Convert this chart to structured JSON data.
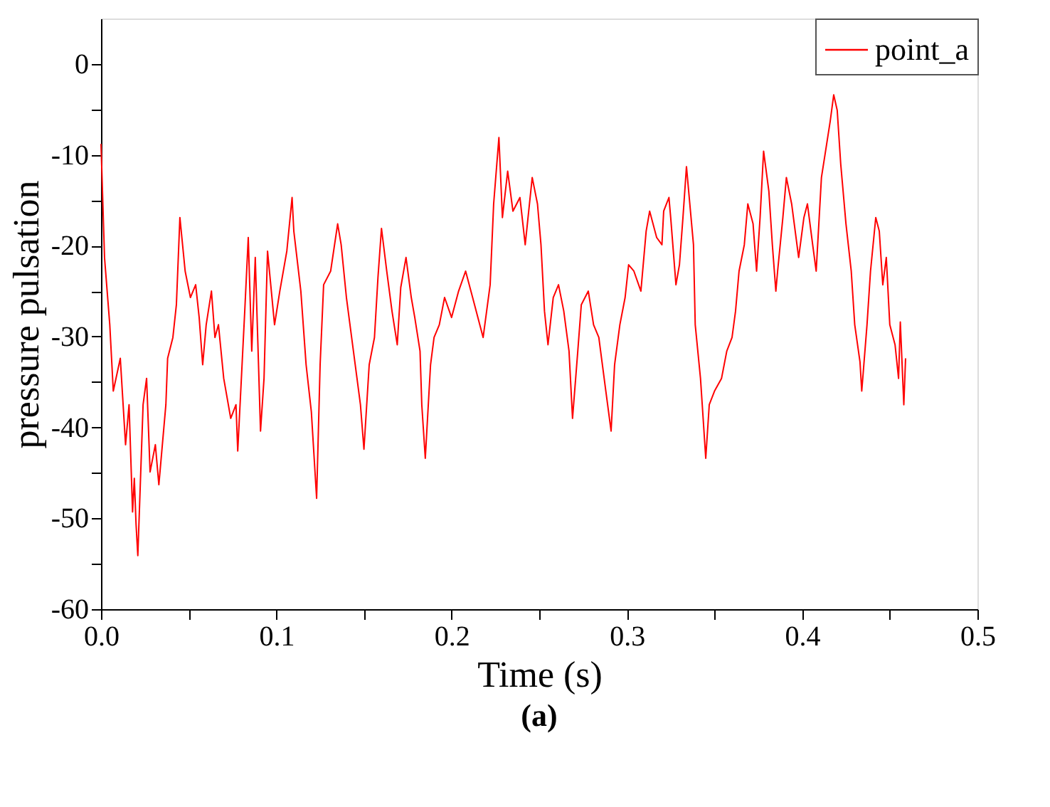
{
  "chart_data": {
    "type": "line",
    "xlabel": "Time (s)",
    "ylabel": "pressure pulsation",
    "annotations": [
      "(a)"
    ],
    "xlim": [
      0,
      0.5
    ],
    "xticks": [
      {
        "value": 0,
        "label": "0.0"
      },
      {
        "value": 0.05,
        "label": null
      },
      {
        "value": 0.1,
        "label": "0.1"
      },
      {
        "value": 0.15,
        "label": null
      },
      {
        "value": 0.2,
        "label": "0.2"
      },
      {
        "value": 0.25,
        "label": null
      },
      {
        "value": 0.3,
        "label": "0.3"
      },
      {
        "value": 0.35,
        "label": null
      },
      {
        "value": 0.4,
        "label": "0.4"
      },
      {
        "value": 0.45,
        "label": null
      },
      {
        "value": 0.5,
        "label": "0.5"
      }
    ],
    "ylim": [
      -60,
      5
    ],
    "yticks": [
      -60,
      {
        "value": -55,
        "label": null
      },
      -50,
      {
        "value": -45,
        "label": null
      },
      -40,
      {
        "value": -35,
        "label": null
      },
      -30,
      {
        "value": -25,
        "label": null
      },
      -20,
      {
        "value": -15,
        "label": null
      },
      -10,
      {
        "value": -5,
        "label": null
      },
      0
    ],
    "grid": false,
    "legend": "top right",
    "line_style": "solid",
    "marker": "none",
    "series": [
      {
        "name": "point_a",
        "color": "#ff0000",
        "x": [
          0,
          0.002,
          0.005,
          0.007,
          0.011,
          0.014,
          0.016,
          0.018,
          0.019,
          0.02,
          0.021,
          0.024,
          0.026,
          0.028,
          0.031,
          0.033,
          0.037,
          0.038,
          0.041,
          0.043,
          0.045,
          0.048,
          0.051,
          0.054,
          0.056,
          0.058,
          0.06,
          0.063,
          0.065,
          0.067,
          0.07,
          0.074,
          0.077,
          0.078,
          0.082,
          0.084,
          0.086,
          0.088,
          0.091,
          0.093,
          0.095,
          0.099,
          0.102,
          0.106,
          0.109,
          0.11,
          0.114,
          0.117,
          0.12,
          0.123,
          0.125,
          0.127,
          0.131,
          0.135,
          0.137,
          0.14,
          0.144,
          0.148,
          0.15,
          0.153,
          0.156,
          0.158,
          0.16,
          0.163,
          0.166,
          0.169,
          0.171,
          0.174,
          0.177,
          0.179,
          0.182,
          0.183,
          0.185,
          0.188,
          0.19,
          0.193,
          0.196,
          0.2,
          0.204,
          0.208,
          0.212,
          0.218,
          0.222,
          0.224,
          0.227,
          0.229,
          0.232,
          0.235,
          0.239,
          0.242,
          0.244,
          0.246,
          0.249,
          0.251,
          0.253,
          0.255,
          0.258,
          0.261,
          0.264,
          0.267,
          0.269,
          0.272,
          0.274,
          0.278,
          0.281,
          0.284,
          0.288,
          0.291,
          0.293,
          0.296,
          0.299,
          0.301,
          0.304,
          0.308,
          0.311,
          0.313,
          0.317,
          0.32,
          0.321,
          0.324,
          0.325,
          0.328,
          0.33,
          0.332,
          0.334,
          0.338,
          0.339,
          0.342,
          0.343,
          0.345,
          0.347,
          0.35,
          0.354,
          0.357,
          0.36,
          0.362,
          0.364,
          0.367,
          0.369,
          0.372,
          0.374,
          0.376,
          0.378,
          0.381,
          0.383,
          0.385,
          0.386,
          0.389,
          0.391,
          0.394,
          0.398,
          0.401,
          0.403,
          0.406,
          0.408,
          0.411,
          0.414,
          0.416,
          0.418,
          0.42,
          0.422,
          0.425,
          0.428,
          0.43,
          0.433,
          0.434,
          0.437,
          0.439,
          0.442,
          0.444,
          0.446,
          0.448,
          0.45,
          0.453,
          0.455,
          0.456,
          0.458,
          0.459
        ],
        "values": [
          -8.8,
          -21.3,
          -28.7,
          -36.0,
          -32.4,
          -41.9,
          -37.5,
          -49.3,
          -45.6,
          -50.7,
          -54.1,
          -37.5,
          -34.6,
          -44.9,
          -41.9,
          -46.3,
          -37.5,
          -32.4,
          -30.1,
          -26.5,
          -16.9,
          -22.8,
          -25.7,
          -24.3,
          -27.9,
          -33.1,
          -28.7,
          -25.0,
          -30.1,
          -28.7,
          -34.6,
          -39.0,
          -37.5,
          -42.6,
          -27.2,
          -19.1,
          -31.6,
          -21.3,
          -40.4,
          -34.6,
          -20.6,
          -28.7,
          -25.0,
          -20.6,
          -14.7,
          -18.4,
          -25.0,
          -33.1,
          -38.3,
          -47.8,
          -33.1,
          -24.3,
          -22.8,
          -17.6,
          -19.9,
          -25.7,
          -31.6,
          -37.5,
          -42.4,
          -33.1,
          -30.1,
          -23.5,
          -18.1,
          -22.8,
          -27.2,
          -30.9,
          -24.6,
          -21.3,
          -25.7,
          -27.9,
          -31.6,
          -37.5,
          -43.4,
          -33.1,
          -30.1,
          -28.7,
          -25.7,
          -27.9,
          -25.0,
          -22.8,
          -25.7,
          -30.1,
          -24.3,
          -15.4,
          -8.1,
          -16.9,
          -11.8,
          -16.2,
          -14.7,
          -19.9,
          -16.2,
          -12.5,
          -15.4,
          -19.9,
          -27.2,
          -30.9,
          -25.7,
          -24.3,
          -27.2,
          -31.6,
          -39.0,
          -31.6,
          -26.5,
          -25.0,
          -28.7,
          -30.1,
          -36.0,
          -40.4,
          -33.1,
          -28.7,
          -25.7,
          -22.1,
          -22.8,
          -25.0,
          -18.4,
          -16.2,
          -19.1,
          -19.9,
          -16.2,
          -14.7,
          -16.9,
          -24.3,
          -22.1,
          -16.9,
          -11.3,
          -19.9,
          -28.7,
          -34.6,
          -37.5,
          -43.4,
          -37.5,
          -36.0,
          -34.6,
          -31.6,
          -30.1,
          -27.2,
          -22.8,
          -19.9,
          -15.4,
          -17.6,
          -22.8,
          -16.9,
          -9.6,
          -14.0,
          -19.9,
          -25.0,
          -22.8,
          -16.9,
          -12.5,
          -15.4,
          -21.3,
          -16.9,
          -15.4,
          -19.9,
          -22.8,
          -12.5,
          -8.8,
          -6.3,
          -3.4,
          -5.1,
          -11.0,
          -17.6,
          -22.8,
          -28.7,
          -32.8,
          -36.0,
          -28.7,
          -22.8,
          -16.9,
          -18.4,
          -24.3,
          -21.3,
          -28.7,
          -30.9,
          -34.6,
          -28.4,
          -37.5,
          -32.4
        ]
      }
    ]
  }
}
